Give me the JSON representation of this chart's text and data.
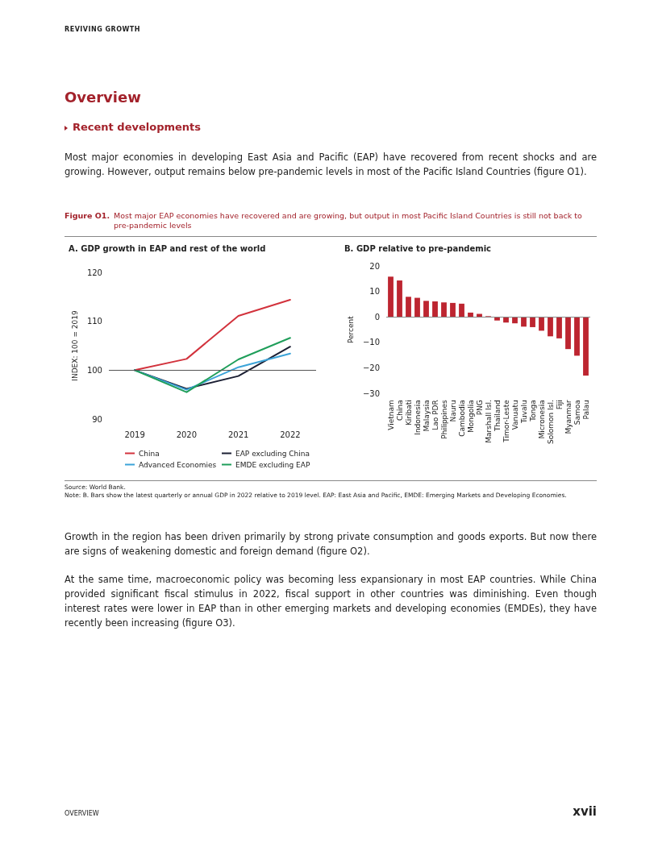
{
  "chart_data": [
    {
      "type": "other",
      "title": "Overview",
      "subtitle": "Recent developments",
      "annotations": [
        "REVIVING GROWTH",
        "Most major economies in developing East Asia and Pacific (EAP) have recovered from recent shocks and are growing. However, output remains below pre-pandemic levels in most of the Pacific Island Countries (figure O1).",
        "Figure O1.",
        "Most major EAP economies have recovered and are growing, but output in most Pacific Island Countries is still not back to pre-pandemic levels",
        "Source: World Bank.",
        "Note: B. Bars show the latest quarterly or annual GDP in 2022 relative to 2019 level. EAP: East Asia and Pacific, EMDE: Emerging Markets and Developing Economies.",
        "Growth in the region has been driven primarily by strong private consumption and goods exports. But now there are signs of weakening domestic and foreign demand (figure O2).",
        "At the same time, macroeconomic policy was becoming less expansionary in most EAP countries. While China provided significant fiscal stimulus in 2022, fiscal support in other countries was diminishing. Even though interest rates were lower in EAP than in other emerging markets and developing economies (EMDEs), they have recently been increasing (figure O3).",
        "OVERVIEW",
        "xvii"
      ]
    },
    {
      "type": "line",
      "title": "A. GDP growth in EAP and rest of the world",
      "ylabel": "INDEX: 100 = 2019",
      "categories": [
        "2019",
        "2020",
        "2021",
        "2022"
      ],
      "ylim": [
        90,
        120
      ],
      "yticks": [
        90,
        100,
        110,
        120
      ],
      "grid": false,
      "legend": "bottom",
      "marker": "none",
      "line_style": "solid",
      "ref_lines": [
        {
          "axis": "y",
          "value": 100,
          "color": "#555555"
        }
      ],
      "series": [
        {
          "name": "China",
          "color": "#d2323c",
          "values": [
            100,
            102.3,
            111.1,
            114.4
          ]
        },
        {
          "name": "EAP excluding China",
          "color": "#1b1f33",
          "values": [
            100,
            96.2,
            98.8,
            104.8
          ]
        },
        {
          "name": "Advanced Economies",
          "color": "#3ba3d8",
          "values": [
            100,
            96.0,
            100.6,
            103.4
          ]
        },
        {
          "name": "EMDE excluding EAP",
          "color": "#1f9e5a",
          "values": [
            100,
            95.5,
            102.2,
            106.6
          ]
        }
      ]
    },
    {
      "type": "bar",
      "title": "B. GDP relative to pre-pandemic",
      "ylabel": "Percent",
      "categories": [
        "Vietnam",
        "China",
        "Kiribati",
        "Indonesia",
        "Malaysia",
        "Lao PDR",
        "Philippines",
        "Nauru",
        "Cambodia",
        "Mongolia",
        "PNG",
        "Marshall Isl.",
        "Thailand",
        "Timor-Leste",
        "Vanuatu",
        "Tuvalu",
        "Tonga",
        "Micronesia",
        "Solomon Isl.",
        "Fiji",
        "Myanmar",
        "Samoa",
        "Palau"
      ],
      "values": [
        15.8,
        14.3,
        7.9,
        7.5,
        6.3,
        6.1,
        5.7,
        5.5,
        5.2,
        1.7,
        1.2,
        0.3,
        -1.4,
        -2.2,
        -2.5,
        -3.8,
        -4.0,
        -5.4,
        -7.6,
        -8.4,
        -12.6,
        -15.2,
        -23.0
      ],
      "color": "#bd2530",
      "ylim": [
        -30,
        20
      ],
      "yticks": [
        -30,
        -20,
        -10,
        0,
        10,
        20
      ],
      "grid": false,
      "legend": false,
      "ref_lines": [
        {
          "axis": "y",
          "value": 0,
          "color": "#888888"
        }
      ]
    }
  ]
}
